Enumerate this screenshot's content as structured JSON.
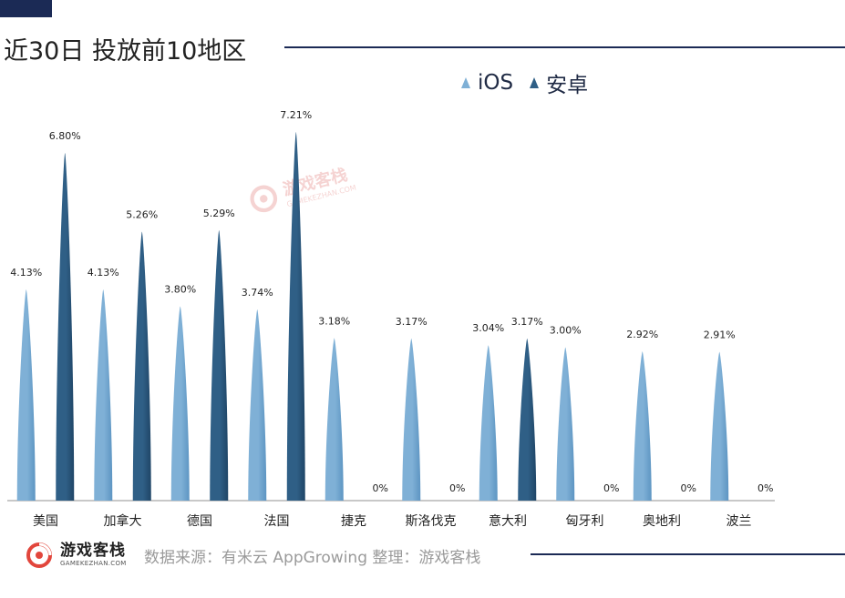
{
  "title": "近30日 投放前10地区",
  "legend": [
    {
      "name": "iOS",
      "color": "#7fb0d6"
    },
    {
      "name": "安卓",
      "color": "#2f5f86"
    }
  ],
  "chart_data": {
    "type": "bar",
    "categories": [
      "美国",
      "加拿大",
      "德国",
      "法国",
      "捷克",
      "斯洛伐克",
      "意大利",
      "匈牙利",
      "奥地利",
      "波兰"
    ],
    "series": [
      {
        "name": "iOS",
        "values": [
          4.13,
          4.13,
          3.8,
          3.74,
          3.18,
          3.17,
          3.04,
          3.0,
          2.92,
          2.91
        ],
        "labels": [
          "4.13%",
          "4.13%",
          "3.80%",
          "3.74%",
          "3.18%",
          "3.17%",
          "3.04%",
          "3.00%",
          "2.92%",
          "2.91%"
        ]
      },
      {
        "name": "安卓",
        "values": [
          6.8,
          5.26,
          5.29,
          7.21,
          0,
          0,
          3.17,
          0,
          0,
          0
        ],
        "labels": [
          "6.80%",
          "5.26%",
          "5.29%",
          "7.21%",
          "0%",
          "0%",
          "3.17%",
          "0%",
          "0%",
          "0%"
        ]
      }
    ],
    "ylim": [
      0,
      7.21
    ],
    "grid": false,
    "legend_position": "top-right"
  },
  "watermark": {
    "cn": "游戏客栈",
    "en": "GAMEKEZHAN.COM"
  },
  "footer": {
    "logo_cn": "游戏客栈",
    "logo_en": "GAMEKEZHAN.COM",
    "source": "数据来源：有米云 AppGrowing  整理：游戏客栈"
  }
}
